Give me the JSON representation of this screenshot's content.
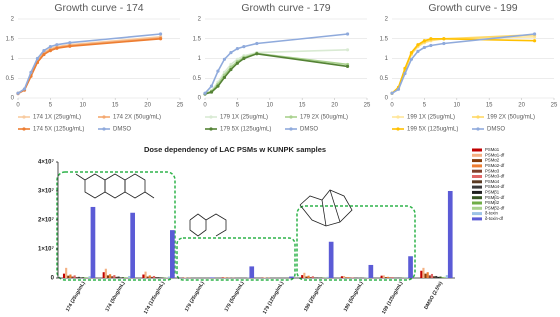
{
  "chart_data": [
    {
      "type": "line",
      "title": "Growth curve - 174",
      "x": [
        0,
        1,
        2,
        3,
        4,
        5,
        6,
        8,
        22
      ],
      "xlim": [
        0,
        25
      ],
      "xticks": [
        0,
        5,
        10,
        15,
        20,
        25
      ],
      "ylim": [
        0,
        2
      ],
      "yticks": [
        0,
        0.5,
        1,
        1.5,
        2
      ],
      "grid": true,
      "series": [
        {
          "name": "174 1X (25ug/mL)",
          "color": "#f8cba0",
          "values": [
            0.12,
            0.22,
            0.6,
            0.95,
            1.15,
            1.25,
            1.3,
            1.35,
            1.55
          ]
        },
        {
          "name": "174 2X (50ug/mL)",
          "color": "#f4a870",
          "values": [
            0.12,
            0.22,
            0.58,
            0.93,
            1.13,
            1.22,
            1.28,
            1.33,
            1.52
          ]
        },
        {
          "name": "174 5X (125ug/mL)",
          "color": "#ed7d31",
          "values": [
            0.11,
            0.2,
            0.55,
            0.9,
            1.1,
            1.2,
            1.26,
            1.31,
            1.5
          ]
        },
        {
          "name": "DMSO",
          "color": "#8faadc",
          "values": [
            0.12,
            0.23,
            0.65,
            1.0,
            1.2,
            1.3,
            1.35,
            1.4,
            1.62
          ]
        }
      ]
    },
    {
      "type": "line",
      "title": "Growth curve - 179",
      "x": [
        0,
        1,
        2,
        3,
        4,
        5,
        6,
        8,
        22
      ],
      "xlim": [
        0,
        25
      ],
      "xticks": [
        0,
        5,
        10,
        15,
        20,
        25
      ],
      "ylim": [
        0,
        2
      ],
      "yticks": [
        0,
        0.5,
        1,
        1.5,
        2
      ],
      "grid": true,
      "series": [
        {
          "name": "179 1X (25ug/mL)",
          "color": "#d9ead3",
          "values": [
            0.11,
            0.18,
            0.4,
            0.65,
            0.85,
            0.98,
            1.07,
            1.15,
            1.22
          ]
        },
        {
          "name": "179 2X (50ug/mL)",
          "color": "#a9d18e",
          "values": [
            0.11,
            0.17,
            0.35,
            0.58,
            0.78,
            0.92,
            1.03,
            1.13,
            0.85
          ]
        },
        {
          "name": "179 5X (125ug/mL)",
          "color": "#548235",
          "values": [
            0.1,
            0.15,
            0.3,
            0.52,
            0.72,
            0.88,
            1.0,
            1.12,
            0.8
          ]
        },
        {
          "name": "DMSO",
          "color": "#8faadc",
          "values": [
            0.12,
            0.3,
            0.68,
            0.98,
            1.15,
            1.25,
            1.3,
            1.38,
            1.62
          ]
        }
      ]
    },
    {
      "type": "line",
      "title": "Growth curve - 199",
      "x": [
        0,
        1,
        2,
        3,
        4,
        5,
        6,
        8,
        22
      ],
      "xlim": [
        0,
        25
      ],
      "xticks": [
        0,
        5,
        10,
        15,
        20,
        25
      ],
      "ylim": [
        0,
        2
      ],
      "yticks": [
        0,
        0.5,
        1,
        1.5,
        2
      ],
      "grid": true,
      "series": [
        {
          "name": "199 1X (25ug/mL)",
          "color": "#ffe699",
          "values": [
            0.12,
            0.25,
            0.7,
            1.1,
            1.3,
            1.4,
            1.45,
            1.5,
            1.55
          ]
        },
        {
          "name": "199 2X (50ug/mL)",
          "color": "#ffd966",
          "values": [
            0.12,
            0.26,
            0.72,
            1.12,
            1.32,
            1.42,
            1.47,
            1.5,
            1.6
          ]
        },
        {
          "name": "199 5X (125ug/mL)",
          "color": "#ffc000",
          "values": [
            0.12,
            0.27,
            0.75,
            1.15,
            1.35,
            1.45,
            1.5,
            1.5,
            1.45
          ]
        },
        {
          "name": "DMSO",
          "color": "#8faadc",
          "values": [
            0.12,
            0.22,
            0.62,
            0.98,
            1.18,
            1.28,
            1.33,
            1.38,
            1.62
          ]
        }
      ]
    },
    {
      "type": "bar",
      "title": "Dose dependency of LAC PSMs w KUNPK samples",
      "categories": [
        "174 (25ug/mL)",
        "174 (50ug/mL)",
        "174 (125ug/mL)",
        "179 (25ug/mL)",
        "179 (50ug/mL)",
        "179 (125ug/mL)",
        "199 (25ug/mL)",
        "199 (50ug/mL)",
        "199 (125ug/mL)",
        "DMSO (2.5%)"
      ],
      "ylim": [
        0,
        40000000
      ],
      "yticks": [
        0,
        {
          "value": 10000000,
          "label": "1×10⁷"
        },
        {
          "value": 20000000,
          "label": "2×10⁷"
        },
        {
          "value": 30000000,
          "label": "3×10⁷"
        },
        {
          "value": 40000000,
          "label": "4×10⁷"
        }
      ],
      "series": [
        {
          "name": "PSMα1",
          "color": "#c00000",
          "values": [
            1500000,
            2000000,
            1200000,
            100000,
            200000,
            100000,
            1000000,
            600000,
            800000,
            2500000
          ]
        },
        {
          "name": "PSMα1-df",
          "color": "#f4b183",
          "values": [
            3500000,
            3200000,
            2200000,
            200000,
            300000,
            200000,
            1800000,
            700000,
            900000,
            3500000
          ]
        },
        {
          "name": "PSMα2",
          "color": "#843c0c",
          "values": [
            800000,
            900000,
            500000,
            0,
            100000,
            0,
            500000,
            200000,
            300000,
            1500000
          ]
        },
        {
          "name": "PSMα2-df",
          "color": "#ed7d31",
          "values": [
            1200000,
            1300000,
            900000,
            100000,
            100000,
            100000,
            800000,
            300000,
            400000,
            2000000
          ]
        },
        {
          "name": "PSMα3",
          "color": "#7f3f2a",
          "values": [
            500000,
            600000,
            400000,
            0,
            0,
            0,
            300000,
            100000,
            200000,
            900000
          ]
        },
        {
          "name": "PSMα3-df",
          "color": "#e06666",
          "values": [
            900000,
            1000000,
            700000,
            0,
            100000,
            0,
            600000,
            200000,
            300000,
            1400000
          ]
        },
        {
          "name": "PSMα4",
          "color": "#5a3a22",
          "values": [
            300000,
            400000,
            300000,
            0,
            0,
            0,
            200000,
            100000,
            100000,
            600000
          ]
        },
        {
          "name": "PSMα4-df",
          "color": "#3a3a3a",
          "values": [
            400000,
            500000,
            300000,
            0,
            0,
            0,
            200000,
            100000,
            100000,
            700000
          ]
        },
        {
          "name": "PSMβ1",
          "color": "#1f1f1f",
          "values": [
            200000,
            200000,
            200000,
            0,
            0,
            0,
            100000,
            0,
            100000,
            400000
          ]
        },
        {
          "name": "PSMβ1-df",
          "color": "#375623",
          "values": [
            300000,
            300000,
            200000,
            0,
            0,
            0,
            200000,
            100000,
            100000,
            500000
          ]
        },
        {
          "name": "PSMβ2",
          "color": "#70ad47",
          "values": [
            200000,
            200000,
            100000,
            0,
            0,
            0,
            100000,
            0,
            100000,
            300000
          ]
        },
        {
          "name": "PSMβ2-df",
          "color": "#a9d18e",
          "values": [
            300000,
            300000,
            200000,
            0,
            0,
            0,
            100000,
            100000,
            100000,
            400000
          ]
        },
        {
          "name": "δ-toxin",
          "color": "#9dc3e6",
          "values": [
            600000,
            700000,
            500000,
            0,
            100000,
            0,
            400000,
            200000,
            300000,
            1000000
          ]
        },
        {
          "name": "δ-toxin-df",
          "color": "#5b5bd6",
          "values": [
            24500000,
            22500000,
            16500000,
            200000,
            4000000,
            500000,
            12500000,
            4500000,
            7500000,
            30000000
          ]
        }
      ]
    }
  ]
}
